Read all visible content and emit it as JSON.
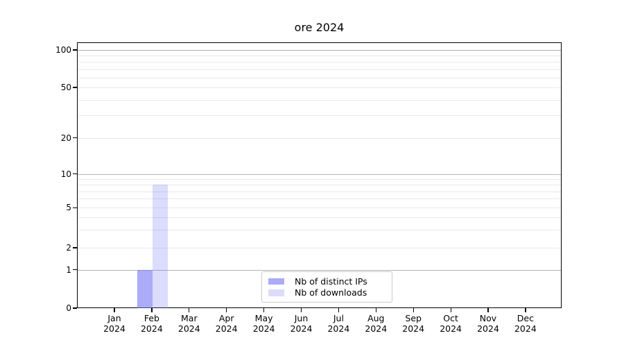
{
  "title": "ore 2024",
  "chart_data": {
    "type": "bar",
    "title": "ore 2024",
    "x_ticks": [
      {
        "month": "Jan",
        "year": "2024"
      },
      {
        "month": "Feb",
        "year": "2024"
      },
      {
        "month": "Mar",
        "year": "2024"
      },
      {
        "month": "Apr",
        "year": "2024"
      },
      {
        "month": "May",
        "year": "2024"
      },
      {
        "month": "Jun",
        "year": "2024"
      },
      {
        "month": "Jul",
        "year": "2024"
      },
      {
        "month": "Aug",
        "year": "2024"
      },
      {
        "month": "Sep",
        "year": "2024"
      },
      {
        "month": "Oct",
        "year": "2024"
      },
      {
        "month": "Nov",
        "year": "2024"
      },
      {
        "month": "Dec",
        "year": "2024"
      }
    ],
    "series": [
      {
        "name": "Nb of distinct IPs",
        "color": "rgba(110,110,242,0.58)",
        "color_hex_on_white": "#ababf3",
        "values": [
          0,
          1,
          0,
          0,
          0,
          0,
          0,
          0,
          0,
          0,
          0,
          0
        ]
      },
      {
        "name": "Nb of downloads",
        "color": "rgba(110,110,242,0.24)",
        "color_hex_on_white": "#dcdcf8",
        "values": [
          0,
          8,
          0,
          0,
          0,
          0,
          0,
          0,
          0,
          0,
          0,
          0
        ]
      }
    ],
    "y_ticks": [
      0,
      1,
      2,
      5,
      10,
      20,
      50,
      100
    ],
    "y_minor_gridlines": [
      3,
      4,
      6,
      7,
      8,
      9,
      30,
      40,
      60,
      70,
      80,
      90
    ],
    "y_scale": "log-like, compressed toward zero (0 baseline shown)",
    "ylim": [
      0,
      115
    ],
    "xlabel": "",
    "ylabel": "",
    "grid": "horizontal only; darker lines at 1, 10, 100",
    "legend_position": "lower center"
  }
}
